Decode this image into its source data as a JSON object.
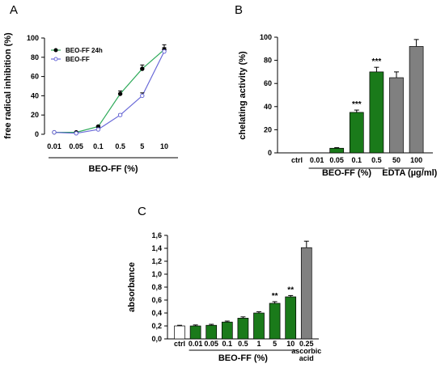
{
  "colors": {
    "green": "#1a7a1a",
    "gray": "#808080",
    "white": "#ffffff",
    "lineGreen": "#2eaa5a",
    "lineBlue": "#6a6ad8"
  },
  "chart_data": [
    {
      "panel": "A",
      "type": "line",
      "categories": [
        "0.01",
        "0.05",
        "0.1",
        "0.5",
        "5",
        "10"
      ],
      "xlabel": "BEO-FF (%)",
      "ylabel": "free radical inhibition (%)",
      "ylim": [
        0,
        100
      ],
      "yticks": [
        "0",
        "20",
        "40",
        "60",
        "80",
        "100"
      ],
      "legend_position": "top-left",
      "series": [
        {
          "name": "BEO-FF 24h",
          "values": [
            2,
            2,
            8,
            42,
            68,
            88
          ],
          "errors": [
            0.5,
            0.5,
            1,
            3,
            4,
            5
          ],
          "marker": "filled"
        },
        {
          "name": "BEO-FF",
          "values": [
            2,
            1,
            5,
            20,
            40,
            86
          ],
          "errors": [
            0.5,
            0.5,
            0.5,
            1,
            3,
            4
          ],
          "marker": "open"
        }
      ]
    },
    {
      "panel": "B",
      "type": "bar",
      "categories": [
        "ctrl",
        "0.01",
        "0.05",
        "0.1",
        "0.5",
        "50",
        "100"
      ],
      "values": [
        0,
        0,
        4,
        35,
        70,
        65,
        92
      ],
      "errors": [
        0,
        0,
        0.5,
        2,
        4,
        5,
        6
      ],
      "bar_colors": [
        "green",
        "green",
        "green",
        "green",
        "green",
        "gray",
        "gray"
      ],
      "annotations": [
        "",
        "",
        "",
        "***",
        "***",
        "",
        ""
      ],
      "group_labels": [
        {
          "label": "BEO-FF (%)",
          "categories": [
            "0.01",
            "0.05",
            "0.1",
            "0.5"
          ]
        },
        {
          "label": "EDTA (µg/ml)",
          "categories": [
            "50",
            "100"
          ]
        }
      ],
      "ylabel": "chelating activity (%)",
      "ylim": [
        0,
        100
      ],
      "yticks": [
        "0",
        "20",
        "40",
        "60",
        "80",
        "100"
      ]
    },
    {
      "panel": "C",
      "type": "bar",
      "categories": [
        "ctrl",
        "0.01",
        "0.05",
        "0.1",
        "0.5",
        "1",
        "5",
        "10",
        "0.25"
      ],
      "values": [
        0.2,
        0.2,
        0.21,
        0.26,
        0.32,
        0.4,
        0.55,
        0.65,
        1.41
      ],
      "errors": [
        0.01,
        0.015,
        0.015,
        0.015,
        0.02,
        0.02,
        0.025,
        0.02,
        0.1
      ],
      "bar_colors": [
        "white",
        "green",
        "green",
        "green",
        "green",
        "green",
        "green",
        "green",
        "gray"
      ],
      "annotations": [
        "",
        "",
        "",
        "",
        "",
        "",
        "**",
        "**",
        ""
      ],
      "group_labels": [
        {
          "label": "BEO-FF (%)",
          "categories": [
            "0.01",
            "0.05",
            "0.1",
            "0.5",
            "1",
            "5",
            "10"
          ]
        },
        {
          "label": "ascorbic\nacid",
          "categories": [
            "0.25"
          ]
        }
      ],
      "ylabel": "absorbance",
      "ylim": [
        0,
        1.6
      ],
      "yticks": [
        "0,0",
        "0,2",
        "0,4",
        "0,6",
        "0,8",
        "1,0",
        "1,2",
        "1,4",
        "1,6"
      ]
    }
  ]
}
